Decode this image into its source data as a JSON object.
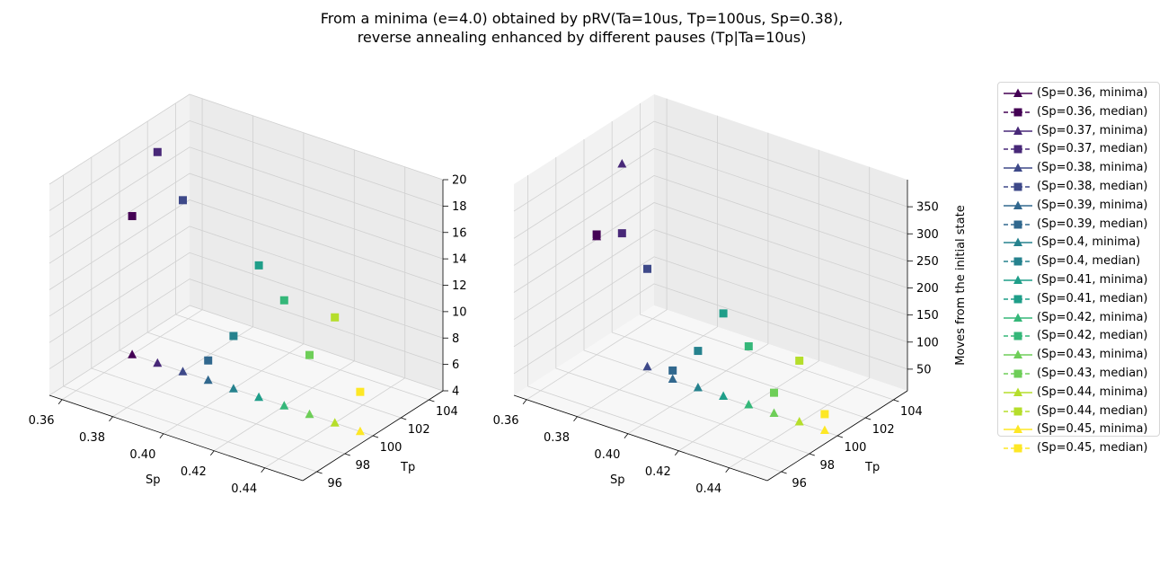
{
  "title": {
    "line1": "From a minima (e=4.0) obtained by pRV(Ta=10us, Tp=100us, Sp=0.38),",
    "line2": "reverse annealing enhanced by different pauses (Tp|Ta=10us)"
  },
  "chart_data": [
    {
      "type": "scatter",
      "projection": "3d",
      "xlabel": "Sp",
      "ylabel": "Tp",
      "zlabel": "",
      "xticks": [
        "0.36",
        "0.38",
        "0.40",
        "0.42",
        "0.44"
      ],
      "yticks": [
        "96",
        "98",
        "100",
        "102",
        "104"
      ],
      "zticks": [
        "4",
        "6",
        "8",
        "10",
        "12",
        "14",
        "16",
        "18",
        "20"
      ],
      "xlim": [
        0.355,
        0.455
      ],
      "ylim": [
        95,
        105
      ],
      "zlim": [
        4,
        20
      ],
      "series": [
        {
          "name": "(Sp=0.36, minima)",
          "marker": "triangle",
          "x": 0.36,
          "y": 100,
          "z": 4.0
        },
        {
          "name": "(Sp=0.36, median)",
          "marker": "square",
          "x": 0.36,
          "y": 100,
          "z": 14.5
        },
        {
          "name": "(Sp=0.37, minima)",
          "marker": "triangle",
          "x": 0.37,
          "y": 100,
          "z": 4.0
        },
        {
          "name": "(Sp=0.37, median)",
          "marker": "square",
          "x": 0.37,
          "y": 100,
          "z": 20.0
        },
        {
          "name": "(Sp=0.38, minima)",
          "marker": "triangle",
          "x": 0.38,
          "y": 100,
          "z": 4.0
        },
        {
          "name": "(Sp=0.38, median)",
          "marker": "square",
          "x": 0.38,
          "y": 100,
          "z": 17.0
        },
        {
          "name": "(Sp=0.39, minima)",
          "marker": "triangle",
          "x": 0.39,
          "y": 100,
          "z": 4.0
        },
        {
          "name": "(Sp=0.39, median)",
          "marker": "square",
          "x": 0.39,
          "y": 100,
          "z": 5.5
        },
        {
          "name": "(Sp=0.4, minima)",
          "marker": "triangle",
          "x": 0.4,
          "y": 100,
          "z": 4.0
        },
        {
          "name": "(Sp=0.4, median)",
          "marker": "square",
          "x": 0.4,
          "y": 100,
          "z": 8.0
        },
        {
          "name": "(Sp=0.41, minima)",
          "marker": "triangle",
          "x": 0.41,
          "y": 100,
          "z": 4.0
        },
        {
          "name": "(Sp=0.41, median)",
          "marker": "square",
          "x": 0.41,
          "y": 100,
          "z": 14.0
        },
        {
          "name": "(Sp=0.42, minima)",
          "marker": "triangle",
          "x": 0.42,
          "y": 100,
          "z": 4.0
        },
        {
          "name": "(Sp=0.42, median)",
          "marker": "square",
          "x": 0.42,
          "y": 100,
          "z": 12.0
        },
        {
          "name": "(Sp=0.43, minima)",
          "marker": "triangle",
          "x": 0.43,
          "y": 100,
          "z": 4.0
        },
        {
          "name": "(Sp=0.43, median)",
          "marker": "square",
          "x": 0.43,
          "y": 100,
          "z": 8.5
        },
        {
          "name": "(Sp=0.44, minima)",
          "marker": "triangle",
          "x": 0.44,
          "y": 100,
          "z": 4.0
        },
        {
          "name": "(Sp=0.44, median)",
          "marker": "square",
          "x": 0.44,
          "y": 100,
          "z": 12.0
        },
        {
          "name": "(Sp=0.45, minima)",
          "marker": "triangle",
          "x": 0.45,
          "y": 100,
          "z": 4.0
        },
        {
          "name": "(Sp=0.45, median)",
          "marker": "square",
          "x": 0.45,
          "y": 100,
          "z": 7.0
        }
      ]
    },
    {
      "type": "scatter",
      "projection": "3d",
      "xlabel": "Sp",
      "ylabel": "Tp",
      "zlabel": "Moves from the initial state",
      "xticks": [
        "0.36",
        "0.38",
        "0.40",
        "0.42",
        "0.44"
      ],
      "yticks": [
        "96",
        "98",
        "100",
        "102",
        "104"
      ],
      "zticks": [
        "50",
        "100",
        "150",
        "200",
        "250",
        "300",
        "350"
      ],
      "xlim": [
        0.355,
        0.455
      ],
      "ylim": [
        95,
        105
      ],
      "zlim": [
        10,
        400
      ],
      "series": [
        {
          "name": "(Sp=0.36, minima)",
          "marker": "triangle",
          "x": 0.36,
          "y": 100,
          "z": 228
        },
        {
          "name": "(Sp=0.36, median)",
          "marker": "square",
          "x": 0.36,
          "y": 100,
          "z": 232
        },
        {
          "name": "(Sp=0.37, minima)",
          "marker": "triangle",
          "x": 0.37,
          "y": 100,
          "z": 378
        },
        {
          "name": "(Sp=0.37, median)",
          "marker": "square",
          "x": 0.37,
          "y": 100,
          "z": 250
        },
        {
          "name": "(Sp=0.38, minima)",
          "marker": "triangle",
          "x": 0.38,
          "y": 100,
          "z": 19
        },
        {
          "name": "(Sp=0.38, median)",
          "marker": "square",
          "x": 0.38,
          "y": 100,
          "z": 200
        },
        {
          "name": "(Sp=0.39, minima)",
          "marker": "triangle",
          "x": 0.39,
          "y": 100,
          "z": 12
        },
        {
          "name": "(Sp=0.39, median)",
          "marker": "square",
          "x": 0.39,
          "y": 100,
          "z": 28
        },
        {
          "name": "(Sp=0.4, minima)",
          "marker": "triangle",
          "x": 0.4,
          "y": 100,
          "z": 12
        },
        {
          "name": "(Sp=0.4, median)",
          "marker": "square",
          "x": 0.4,
          "y": 100,
          "z": 80
        },
        {
          "name": "(Sp=0.41, minima)",
          "marker": "triangle",
          "x": 0.41,
          "y": 100,
          "z": 12
        },
        {
          "name": "(Sp=0.41, median)",
          "marker": "square",
          "x": 0.41,
          "y": 100,
          "z": 165
        },
        {
          "name": "(Sp=0.42, minima)",
          "marker": "triangle",
          "x": 0.42,
          "y": 100,
          "z": 12
        },
        {
          "name": "(Sp=0.42, median)",
          "marker": "square",
          "x": 0.42,
          "y": 100,
          "z": 120
        },
        {
          "name": "(Sp=0.43, minima)",
          "marker": "triangle",
          "x": 0.43,
          "y": 100,
          "z": 12
        },
        {
          "name": "(Sp=0.43, median)",
          "marker": "square",
          "x": 0.43,
          "y": 100,
          "z": 50
        },
        {
          "name": "(Sp=0.44, minima)",
          "marker": "triangle",
          "x": 0.44,
          "y": 100,
          "z": 12
        },
        {
          "name": "(Sp=0.44, median)",
          "marker": "square",
          "x": 0.44,
          "y": 100,
          "z": 125
        },
        {
          "name": "(Sp=0.45, minima)",
          "marker": "triangle",
          "x": 0.45,
          "y": 100,
          "z": 12
        },
        {
          "name": "(Sp=0.45, median)",
          "marker": "square",
          "x": 0.45,
          "y": 100,
          "z": 42
        }
      ]
    }
  ],
  "legend": {
    "placement": "right, outside",
    "items": [
      {
        "label": "(Sp=0.36, minima)",
        "marker": "triangle",
        "line": "solid",
        "color": "#440154"
      },
      {
        "label": "(Sp=0.36, median)",
        "marker": "square",
        "line": "dashed",
        "color": "#440154"
      },
      {
        "label": "(Sp=0.37, minima)",
        "marker": "triangle",
        "line": "solid",
        "color": "#482878"
      },
      {
        "label": "(Sp=0.37, median)",
        "marker": "square",
        "line": "dashed",
        "color": "#482878"
      },
      {
        "label": "(Sp=0.38, minima)",
        "marker": "triangle",
        "line": "solid",
        "color": "#3e4989"
      },
      {
        "label": "(Sp=0.38, median)",
        "marker": "square",
        "line": "dashed",
        "color": "#3e4989"
      },
      {
        "label": "(Sp=0.39, minima)",
        "marker": "triangle",
        "line": "solid",
        "color": "#31688e"
      },
      {
        "label": "(Sp=0.39, median)",
        "marker": "square",
        "line": "dashed",
        "color": "#31688e"
      },
      {
        "label": "(Sp=0.4, minima)",
        "marker": "triangle",
        "line": "solid",
        "color": "#26828e"
      },
      {
        "label": "(Sp=0.4, median)",
        "marker": "square",
        "line": "dashed",
        "color": "#26828e"
      },
      {
        "label": "(Sp=0.41, minima)",
        "marker": "triangle",
        "line": "solid",
        "color": "#1f9e89"
      },
      {
        "label": "(Sp=0.41, median)",
        "marker": "square",
        "line": "dashed",
        "color": "#1f9e89"
      },
      {
        "label": "(Sp=0.42, minima)",
        "marker": "triangle",
        "line": "solid",
        "color": "#35b779"
      },
      {
        "label": "(Sp=0.42, median)",
        "marker": "square",
        "line": "dashed",
        "color": "#35b779"
      },
      {
        "label": "(Sp=0.43, minima)",
        "marker": "triangle",
        "line": "solid",
        "color": "#6ece58"
      },
      {
        "label": "(Sp=0.43, median)",
        "marker": "square",
        "line": "dashed",
        "color": "#6ece58"
      },
      {
        "label": "(Sp=0.44, minima)",
        "marker": "triangle",
        "line": "solid",
        "color": "#b5de2b"
      },
      {
        "label": "(Sp=0.44, median)",
        "marker": "square",
        "line": "dashed",
        "color": "#b5de2b"
      },
      {
        "label": "(Sp=0.45, minima)",
        "marker": "triangle",
        "line": "solid",
        "color": "#fde725"
      },
      {
        "label": "(Sp=0.45, median)",
        "marker": "square",
        "line": "dashed",
        "color": "#fde725"
      }
    ]
  },
  "colors": {
    "pane_left": "#f2f2f2",
    "pane_right": "#ebebeb",
    "pane_floor": "#f7f7f7",
    "grid": "#d0d0d0"
  }
}
